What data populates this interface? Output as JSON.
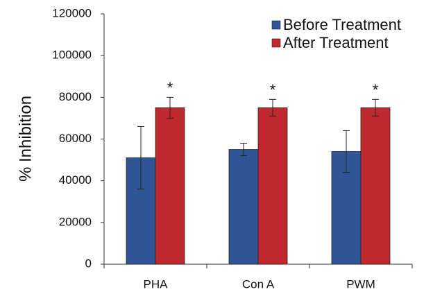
{
  "chart_data": {
    "type": "bar",
    "ylabel": "% Inhibition",
    "categories": [
      "PHA",
      "Con A",
      "PWM"
    ],
    "series": [
      {
        "name": "Before Treatment",
        "color": "#2f5597",
        "values": [
          51000,
          55000,
          54000
        ],
        "errors": [
          15000,
          3000,
          10000
        ]
      },
      {
        "name": "After Treatment",
        "color": "#c0282f",
        "values": [
          75000,
          75000,
          75000
        ],
        "errors": [
          5000,
          4000,
          4000
        ]
      }
    ],
    "annotations": [
      "*",
      "*",
      "*"
    ],
    "ylim": [
      0,
      120000
    ],
    "yticks": [
      0,
      20000,
      40000,
      60000,
      80000,
      100000,
      120000
    ],
    "legend": "top-right",
    "grid": false
  }
}
